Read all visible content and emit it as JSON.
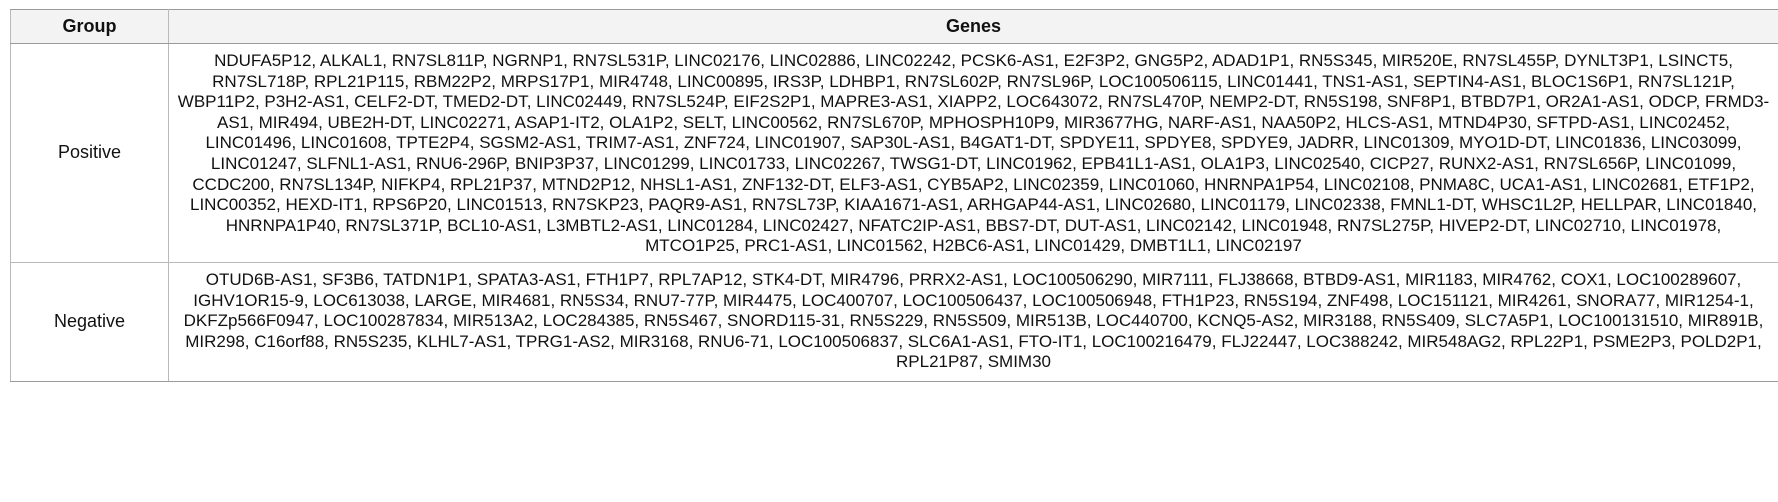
{
  "table": {
    "headers": {
      "group": "Group",
      "genes": "Genes"
    },
    "rows": [
      {
        "group": "Positive",
        "genes": "NDUFA5P12, ALKAL1, RN7SL811P, NGRNP1, RN7SL531P, LINC02176, LINC02886, LINC02242, PCSK6-AS1, E2F3P2, GNG5P2, ADAD1P1, RN5S345, MIR520E, RN7SL455P, DYNLT3P1, LSINCT5, RN7SL718P, RPL21P115, RBM22P2, MRPS17P1, MIR4748, LINC00895, IRS3P, LDHBP1, RN7SL602P, RN7SL96P, LOC100506115, LINC01441, TNS1-AS1, SEPTIN4-AS1, BLOC1S6P1, RN7SL121P, WBP11P2, P3H2-AS1, CELF2-DT, TMED2-DT, LINC02449, RN7SL524P, EIF2S2P1, MAPRE3-AS1, XIAPP2, LOC643072, RN7SL470P, NEMP2-DT, RN5S198, SNF8P1, BTBD7P1, OR2A1-AS1, ODCP, FRMD3-AS1, MIR494, UBE2H-DT, LINC02271, ASAP1-IT2, OLA1P2, SELT, LINC00562, RN7SL670P, MPHOSPH10P9, MIR3677HG, NARF-AS1, NAA50P2, HLCS-AS1, MTND4P30, SFTPD-AS1, LINC02452, LINC01496, LINC01608, TPTE2P4, SGSM2-AS1, TRIM7-AS1, ZNF724, LINC01907, SAP30L-AS1, B4GAT1-DT, SPDYE11, SPDYE8, SPDYE9, JADRR, LINC01309, MYO1D-DT, LINC01836, LINC03099, LINC01247, SLFNL1-AS1, RNU6-296P, BNIP3P37, LINC01299, LINC01733, LINC02267, TWSG1-DT, LINC01962, EPB41L1-AS1, OLA1P3, LINC02540, CICP27, RUNX2-AS1, RN7SL656P, LINC01099, CCDC200, RN7SL134P, NIFKP4, RPL21P37, MTND2P12, NHSL1-AS1, ZNF132-DT, ELF3-AS1, CYB5AP2, LINC02359, LINC01060, HNRNPA1P54, LINC02108, PNMA8C, UCA1-AS1, LINC02681, ETF1P2, LINC00352, HEXD-IT1, RPS6P20, LINC01513, RN7SKP23, PAQR9-AS1, RN7SL73P, KIAA1671-AS1, ARHGAP44-AS1, LINC02680, LINC01179, LINC02338, FMNL1-DT, WHSC1L2P, HELLPAR, LINC01840, HNRNPA1P40, RN7SL371P, BCL10-AS1, L3MBTL2-AS1, LINC01284, LINC02427, NFATC2IP-AS1, BBS7-DT, DUT-AS1, LINC02142, LINC01948, RN7SL275P, HIVEP2-DT, LINC02710, LINC01978, MTCO1P25, PRC1-AS1, LINC01562, H2BC6-AS1, LINC01429, DMBT1L1, LINC02197"
      },
      {
        "group": "Negative",
        "genes": "OTUD6B-AS1, SF3B6, TATDN1P1, SPATA3-AS1, FTH1P7, RPL7AP12, STK4-DT, MIR4796, PRRX2-AS1, LOC100506290, MIR7111, FLJ38668, BTBD9-AS1, MIR1183, MIR4762, COX1, LOC100289607, IGHV1OR15-9, LOC613038, LARGE, MIR4681, RN5S34, RNU7-77P, MIR4475, LOC400707, LOC100506437, LOC100506948, FTH1P23, RN5S194, ZNF498, LOC151121, MIR4261, SNORA77, MIR1254-1, DKFZp566F0947, LOC100287834, MIR513A2, LOC284385, RN5S467, SNORD115-31, RN5S229, RN5S509, MIR513B, LOC440700, KCNQ5-AS2, MIR3188, RN5S409, SLC7A5P1, LOC100131510, MIR891B, MIR298, C16orf88, RN5S235, KLHL7-AS1, TPRG1-AS2, MIR3168, RNU6-71, LOC100506837, SLC6A1-AS1, FTO-IT1, LOC100216479, FLJ22447, LOC388242, MIR548AG2, RPL22P1, PSME2P3, POLD2P1, RPL21P87, SMIM30"
      }
    ]
  }
}
